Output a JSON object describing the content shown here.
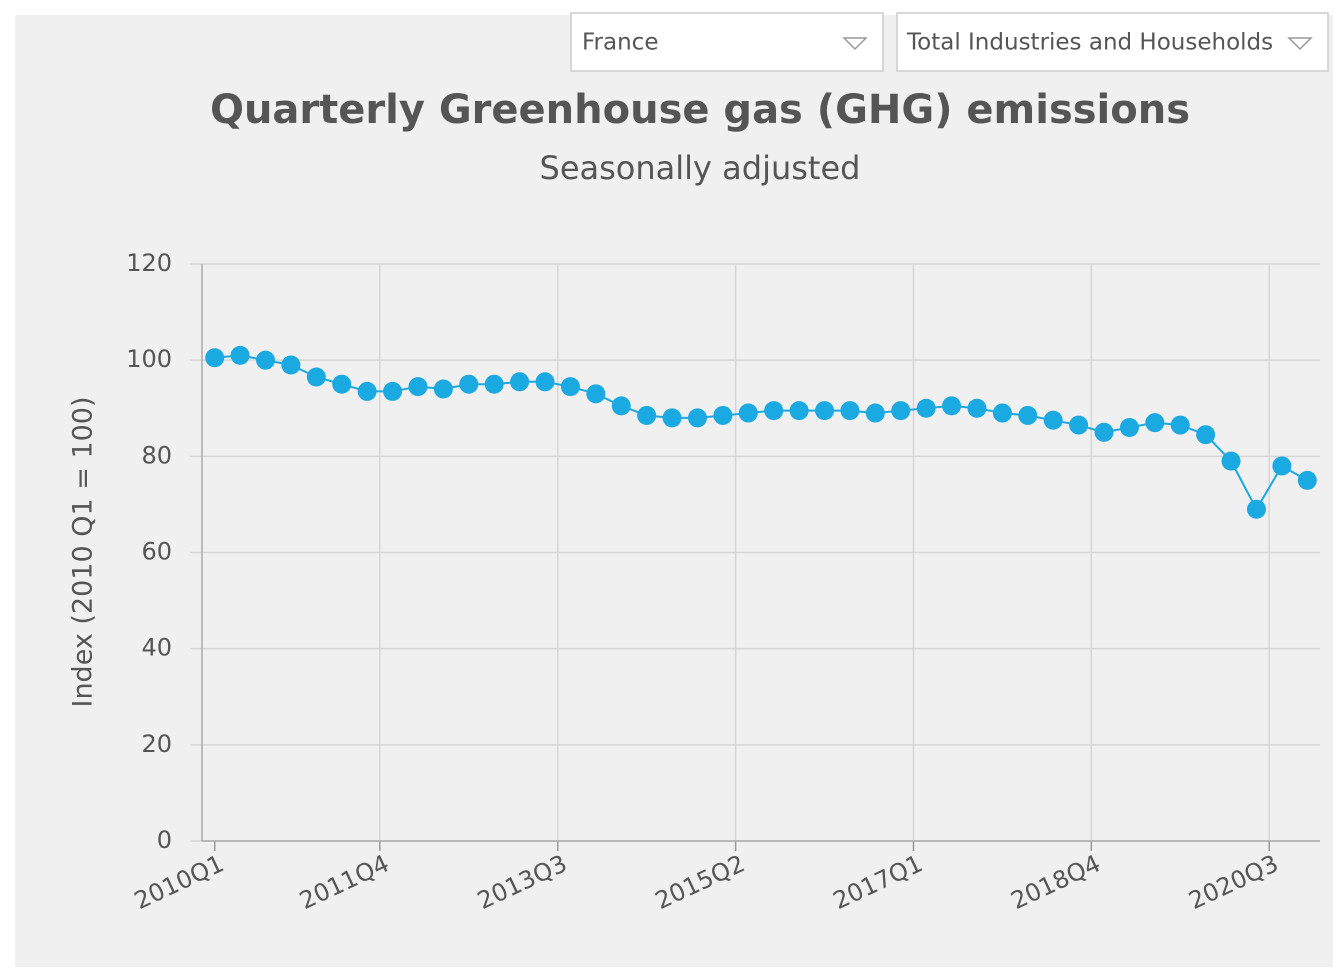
{
  "dropdowns": [
    "France",
    "Total Industries and Households"
  ],
  "chart_data": {
    "type": "line",
    "title": "Quarterly Greenhouse gas (GHG) emissions",
    "subtitle": "Seasonally adjusted",
    "y_label": "Index (2010 Q1 = 100)",
    "categories": [
      "2010Q1",
      null,
      null,
      null,
      null,
      null,
      null,
      "2011Q4",
      null,
      null,
      null,
      null,
      null,
      null,
      "2013Q3",
      null,
      null,
      null,
      null,
      null,
      null,
      "2015Q2",
      null,
      null,
      null,
      null,
      null,
      null,
      "2017Q1",
      null,
      null,
      null,
      null,
      null,
      null,
      "2018Q4",
      null,
      null,
      null,
      null,
      null,
      null,
      "2020Q3",
      null
    ],
    "series": [
      {
        "name": "GHG emissions",
        "color": "#1ba9e1",
        "values": [
          100.5,
          101,
          100,
          99,
          96.5,
          95,
          93.5,
          93.5,
          94.5,
          94,
          95,
          95,
          95.5,
          95.5,
          94.5,
          93,
          90.5,
          88.5,
          88,
          88,
          88.5,
          89,
          89.5,
          89.5,
          89.5,
          89.5,
          89,
          89.5,
          90,
          90.5,
          90,
          89,
          88.5,
          87.5,
          86.5,
          85,
          86,
          87,
          86.5,
          84.5,
          79,
          69,
          78,
          75
        ]
      }
    ],
    "ylim": [
      0,
      120
    ],
    "yticks": [
      0,
      20,
      40,
      60,
      80,
      100,
      120
    ],
    "grid": true
  }
}
